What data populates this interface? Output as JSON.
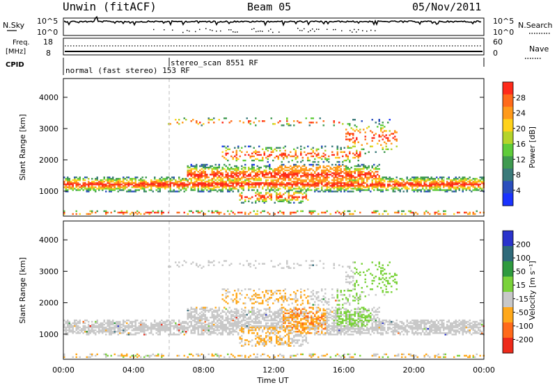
{
  "header": {
    "title": "Unwin (fitACF)",
    "beam": "Beam 05",
    "date": "05/Nov/2011"
  },
  "top_panel": {
    "left_label": "N.Sky",
    "left_ticks": [
      "10^5",
      "10^0"
    ],
    "right_label": "N.Search",
    "right_ticks": [
      "10^5",
      "10^0"
    ]
  },
  "freq_panel": {
    "left_label_1": "Freq.",
    "left_label_2": "[MHz]",
    "left_ticks": [
      "18",
      "8"
    ],
    "right_ticks": [
      "60",
      "0"
    ],
    "right_label": "Nave"
  },
  "cpid_panel": {
    "label": "CPID",
    "mode_1": "normal (fast stereo) 153 RF",
    "mode_2": "stereo_scan 8551 RF"
  },
  "chart_data": [
    {
      "type": "heatmap",
      "name": "power",
      "ylabel": "Slant Range [km]",
      "xlabel": "",
      "yticks": [
        "1000",
        "2000",
        "3000",
        "4000"
      ],
      "xlim": [
        0,
        24
      ],
      "ylim": [
        200,
        4600
      ],
      "colorbar": {
        "label": "Power [dB]",
        "ticks": [
          "4",
          "8",
          "12",
          "16",
          "20",
          "24",
          "28"
        ],
        "colors": [
          "#1a33ff",
          "#2a4ebd",
          "#3a7a7a",
          "#3f9a50",
          "#5fcc3a",
          "#b5d42a",
          "#ffd21a",
          "#ff9a1a",
          "#ff6a1a",
          "#ff2a1a"
        ]
      }
    },
    {
      "type": "heatmap",
      "name": "velocity",
      "ylabel": "Slant Range [km]",
      "xlabel": "Time UT",
      "yticks": [
        "1000",
        "2000",
        "3000",
        "4000"
      ],
      "xticks": [
        "00:00",
        "04:00",
        "08:00",
        "12:00",
        "16:00",
        "20:00",
        "00:00"
      ],
      "xlim": [
        0,
        24
      ],
      "ylim": [
        200,
        4600
      ],
      "colorbar": {
        "label": "Velocity [m s⁻¹]",
        "ticks": [
          "200",
          "100",
          "50",
          "15",
          "-15",
          "-50",
          "-100",
          "-200"
        ],
        "colors": [
          "#2a33cc",
          "#2f6a7a",
          "#2f9a3f",
          "#7ad23a",
          "#c8c8c8",
          "#ffa81a",
          "#ff6a1a",
          "#ee2a1a"
        ]
      }
    }
  ]
}
